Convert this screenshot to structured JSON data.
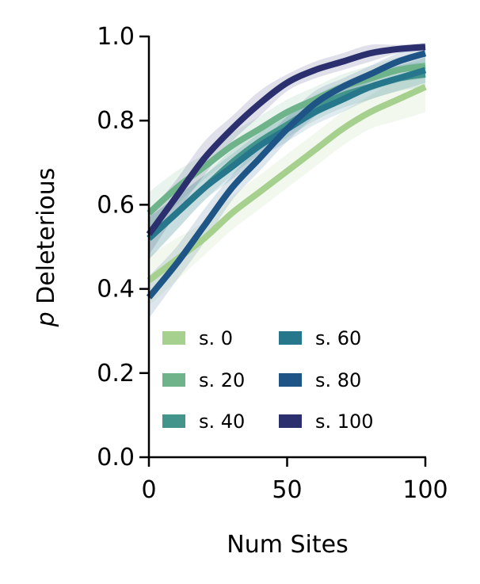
{
  "chart_data": {
    "type": "line",
    "xlabel": "Num Sites",
    "ylabel_italic": "p",
    "ylabel_rest": " Deleterious",
    "xlim": [
      0,
      100
    ],
    "ylim": [
      0,
      1
    ],
    "xticks": [
      0,
      50,
      100
    ],
    "xtick_labels": [
      "0",
      "50",
      "100"
    ],
    "yticks": [
      0,
      0.2,
      0.4,
      0.6,
      0.8,
      1.0
    ],
    "ytick_labels": [
      "0.0",
      "0.2",
      "0.4",
      "0.6",
      "0.8",
      "1.0"
    ],
    "grid": false,
    "legend_placement": "lower-left",
    "x": [
      0,
      10,
      20,
      30,
      40,
      50,
      60,
      70,
      80,
      90,
      100
    ],
    "series": [
      {
        "name": "s. 0",
        "color": "#a5d08d",
        "values": [
          0.42,
          0.47,
          0.52,
          0.58,
          0.63,
          0.68,
          0.73,
          0.78,
          0.82,
          0.85,
          0.88
        ],
        "band": [
          0.06,
          0.05,
          0.04,
          0.04,
          0.04,
          0.04,
          0.04,
          0.04,
          0.04,
          0.05,
          0.06
        ]
      },
      {
        "name": "s. 20",
        "color": "#6fb38a",
        "values": [
          0.58,
          0.64,
          0.69,
          0.74,
          0.78,
          0.82,
          0.85,
          0.88,
          0.9,
          0.92,
          0.93
        ],
        "band": [
          0.05,
          0.04,
          0.03,
          0.03,
          0.03,
          0.03,
          0.03,
          0.03,
          0.03,
          0.03,
          0.03
        ]
      },
      {
        "name": "s. 40",
        "color": "#43958c",
        "values": [
          0.52,
          0.58,
          0.64,
          0.7,
          0.75,
          0.79,
          0.83,
          0.86,
          0.88,
          0.9,
          0.91
        ],
        "band": [
          0.05,
          0.04,
          0.03,
          0.03,
          0.03,
          0.03,
          0.03,
          0.03,
          0.03,
          0.03,
          0.03
        ]
      },
      {
        "name": "s. 60",
        "color": "#26778c",
        "values": [
          0.52,
          0.58,
          0.64,
          0.69,
          0.74,
          0.78,
          0.82,
          0.85,
          0.88,
          0.9,
          0.92
        ],
        "band": [
          0.05,
          0.04,
          0.03,
          0.03,
          0.03,
          0.03,
          0.03,
          0.03,
          0.03,
          0.03,
          0.03
        ]
      },
      {
        "name": "s. 80",
        "color": "#1f5586",
        "values": [
          0.38,
          0.46,
          0.55,
          0.64,
          0.71,
          0.78,
          0.84,
          0.88,
          0.91,
          0.94,
          0.96
        ],
        "band": [
          0.05,
          0.04,
          0.04,
          0.03,
          0.03,
          0.03,
          0.03,
          0.02,
          0.02,
          0.02,
          0.02
        ]
      },
      {
        "name": "s. 100",
        "color": "#2b2f6e",
        "values": [
          0.53,
          0.62,
          0.71,
          0.78,
          0.84,
          0.89,
          0.92,
          0.94,
          0.96,
          0.97,
          0.975
        ],
        "band": [
          0.05,
          0.04,
          0.04,
          0.03,
          0.03,
          0.02,
          0.02,
          0.02,
          0.02,
          0.01,
          0.01
        ]
      }
    ]
  }
}
